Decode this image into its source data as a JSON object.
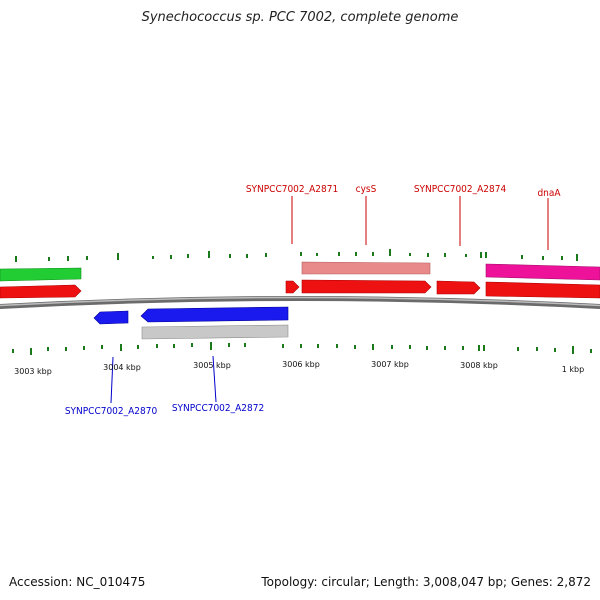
{
  "title": "Synechococcus sp. PCC 7002, complete genome",
  "footer": {
    "accession": "Accession: NC_010475",
    "summary": "Topology: circular; Length: 3,008,047 bp; Genes: 2,872"
  },
  "colors": {
    "backbone": "#8a8a8a",
    "cds_forward": "#ee1111",
    "cds_reverse": "#1a1aee",
    "rna_forward": "#e98a8a",
    "rna_reverse": "#c8c8c8",
    "gc_green": "#22cc33",
    "gc_magenta": "#ee1199",
    "marker": "#1a7a1a",
    "label_forward": "#cc0000",
    "label_reverse": "#0000cc"
  },
  "axis": {
    "tick_labels": [
      "3003 kbp",
      "3004 kbp",
      "3005 kbp",
      "3006 kbp",
      "3007 kbp",
      "3008 kbp",
      "1 kbp"
    ]
  },
  "features": [
    {
      "id": "green-top",
      "kind": "gc",
      "strand": "+",
      "color_key": "gc_green",
      "start_kbp": 3002.4,
      "end_kbp": 3003.6
    },
    {
      "id": "red-left",
      "kind": "cds",
      "strand": "+",
      "color_key": "cds_forward",
      "start_kbp": 3002.4,
      "end_kbp": 3003.6
    },
    {
      "id": "small-red",
      "kind": "cds",
      "strand": "+",
      "color_key": "cds_forward",
      "start_kbp": 3005.9,
      "end_kbp": 3006.05
    },
    {
      "id": "red-cysS",
      "kind": "cds",
      "strand": "+",
      "color_key": "cds_forward",
      "start_kbp": 3006.05,
      "end_kbp": 3007.45
    },
    {
      "id": "pink-cysS",
      "kind": "rna",
      "strand": "+",
      "color_key": "rna_forward",
      "start_kbp": 3006.05,
      "end_kbp": 3007.45
    },
    {
      "id": "red-2874",
      "kind": "cds",
      "strand": "+",
      "color_key": "cds_forward",
      "start_kbp": 3007.6,
      "end_kbp": 3008.05
    },
    {
      "id": "red-dnaA",
      "kind": "cds",
      "strand": "+",
      "color_key": "cds_forward",
      "start_kbp": 3008.15,
      "end_kbp": 3009.4
    },
    {
      "id": "magenta-dnaA",
      "kind": "gc",
      "strand": "+",
      "color_key": "gc_magenta",
      "start_kbp": 3008.15,
      "end_kbp": 3009.4
    },
    {
      "id": "blue-2870",
      "kind": "cds",
      "strand": "-",
      "color_key": "cds_reverse",
      "start_kbp": 3003.9,
      "end_kbp": 3004.3
    },
    {
      "id": "blue-2872",
      "kind": "cds",
      "strand": "-",
      "color_key": "cds_reverse",
      "start_kbp": 3004.4,
      "end_kbp": 3006.0
    },
    {
      "id": "gray-2872",
      "kind": "rna",
      "strand": "-",
      "color_key": "rna_reverse",
      "start_kbp": 3004.4,
      "end_kbp": 3006.0
    }
  ],
  "labels": {
    "top": [
      "SYNPCC7002_A2871",
      "cysS",
      "SYNPCC7002_A2874",
      "dnaA"
    ],
    "bottom": [
      "SYNPCC7002_A2870",
      "SYNPCC7002_A2872"
    ]
  }
}
